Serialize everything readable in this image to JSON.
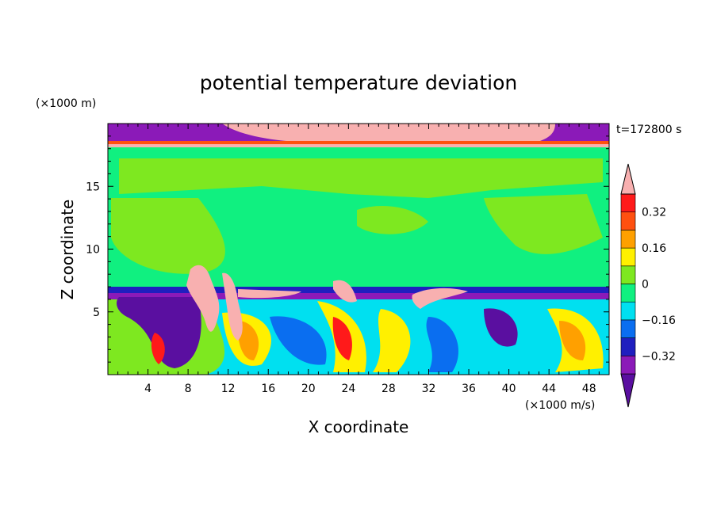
{
  "chart_data": {
    "type": "heatmap",
    "title": "potential temperature deviation",
    "xlabel": "X coordinate",
    "ylabel": "Z coordinate",
    "x_unit": "(×1000 m/s)",
    "y_unit": "(×1000 m)",
    "time_label": "t=172800 s",
    "xlim": [
      0,
      50
    ],
    "ylim": [
      0,
      20
    ],
    "x_ticks": [
      "4",
      "8",
      "12",
      "16",
      "20",
      "24",
      "28",
      "32",
      "36",
      "40",
      "44",
      "48"
    ],
    "y_ticks": [
      "5",
      "10",
      "15"
    ],
    "colorbar": {
      "tick_labels": [
        "0.32",
        "0.16",
        "0",
        "−0.16",
        "−0.32"
      ],
      "levels": [
        -0.4,
        -0.32,
        -0.24,
        -0.16,
        -0.08,
        0,
        0.08,
        0.16,
        0.24,
        0.32,
        0.4
      ],
      "colors": [
        "#5a0fa0",
        "#8b1ab8",
        "#1f1fbf",
        "#0a6ef0",
        "#00e0f0",
        "#10f080",
        "#7ee820",
        "#fff000",
        "#ffa000",
        "#ff5010",
        "#ff1a1a",
        "#f8b0b0"
      ]
    }
  }
}
